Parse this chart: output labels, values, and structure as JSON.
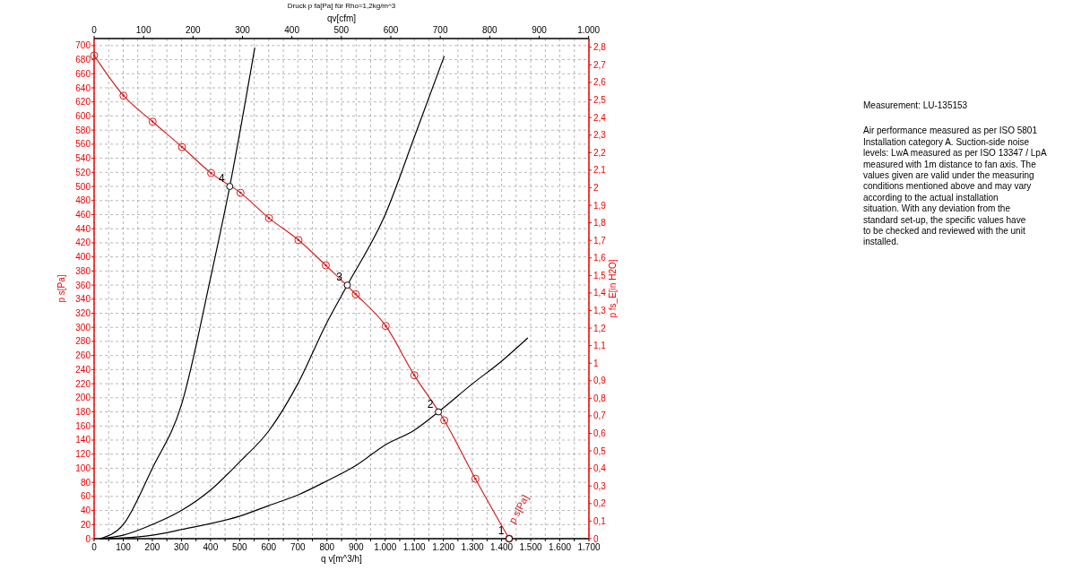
{
  "chart_data": {
    "type": "line",
    "title": "Druck p fa[Pa] für Rho=1,2kg/m^3",
    "xlabel": "q v[m^3/h]",
    "x2label": "qv[cfm]",
    "ylabel": "p s[Pa]",
    "y2label": "p fs_E[in H2O]",
    "xlim": [
      0,
      1700
    ],
    "xticks": [
      0,
      {
        "value": 50,
        "label": null
      },
      {
        "value": 100,
        "label": "100"
      },
      {
        "value": 150,
        "label": null
      },
      {
        "value": 200,
        "label": "200"
      },
      {
        "value": 250,
        "label": null
      },
      {
        "value": 300,
        "label": "300"
      },
      {
        "value": 350,
        "label": null
      },
      {
        "value": 400,
        "label": "400"
      },
      {
        "value": 450,
        "label": null
      },
      {
        "value": 500,
        "label": "500"
      },
      {
        "value": 550,
        "label": null
      },
      {
        "value": 600,
        "label": "600"
      },
      {
        "value": 650,
        "label": null
      },
      {
        "value": 700,
        "label": "700"
      },
      {
        "value": 750,
        "label": null
      },
      {
        "value": 800,
        "label": "800"
      },
      {
        "value": 850,
        "label": null
      },
      {
        "value": 900,
        "label": "900"
      },
      {
        "value": 950,
        "label": null
      },
      {
        "value": 1000,
        "label": "1.000"
      },
      {
        "value": 1050,
        "label": null
      },
      {
        "value": 1100,
        "label": "1.100"
      },
      {
        "value": 1150,
        "label": null
      },
      {
        "value": 1200,
        "label": "1.200"
      },
      {
        "value": 1250,
        "label": null
      },
      {
        "value": 1300,
        "label": "1.300"
      },
      {
        "value": 1350,
        "label": null
      },
      {
        "value": 1400,
        "label": "1.400"
      },
      {
        "value": 1450,
        "label": null
      },
      {
        "value": 1500,
        "label": "1.500"
      },
      {
        "value": 1550,
        "label": null
      },
      {
        "value": 1600,
        "label": "1.600"
      },
      {
        "value": 1650,
        "label": null
      },
      {
        "value": 1700,
        "label": "1.700"
      }
    ],
    "x2lim": [
      0,
      1000.6
    ],
    "x2ticks": [
      0,
      100,
      200,
      300,
      400,
      500,
      600,
      700,
      800,
      900,
      {
        "value": 1000,
        "label": "1.000"
      }
    ],
    "ylim": [
      0,
      710
    ],
    "yticks": [
      0,
      20,
      40,
      60,
      80,
      100,
      120,
      140,
      160,
      180,
      200,
      220,
      240,
      260,
      280,
      300,
      320,
      340,
      360,
      380,
      400,
      420,
      440,
      460,
      480,
      500,
      520,
      540,
      560,
      580,
      600,
      620,
      640,
      660,
      680,
      700
    ],
    "y2lim": [
      0,
      2.85
    ],
    "y2ticks": [
      0,
      {
        "value": 0.1,
        "label": "0,1"
      },
      {
        "value": 0.2,
        "label": "0,2"
      },
      {
        "value": 0.3,
        "label": "0,3"
      },
      {
        "value": 0.4,
        "label": "0,4"
      },
      {
        "value": 0.5,
        "label": "0,5"
      },
      {
        "value": 0.6,
        "label": "0,6"
      },
      {
        "value": 0.7,
        "label": "0,7"
      },
      {
        "value": 0.8,
        "label": "0,8"
      },
      {
        "value": 0.9,
        "label": "0,9"
      },
      1,
      {
        "value": 1.1,
        "label": "1,1"
      },
      {
        "value": 1.2,
        "label": "1,2"
      },
      {
        "value": 1.3,
        "label": "1,3"
      },
      {
        "value": 1.4,
        "label": "1,4"
      },
      {
        "value": 1.5,
        "label": "1,5"
      },
      {
        "value": 1.6,
        "label": "1,6"
      },
      {
        "value": 1.7,
        "label": "1,7"
      },
      {
        "value": 1.8,
        "label": "1,8"
      },
      {
        "value": 1.9,
        "label": "1,9"
      },
      2,
      {
        "value": 2.1,
        "label": "2,1"
      },
      {
        "value": 2.2,
        "label": "2,2"
      },
      {
        "value": 2.3,
        "label": "2,3"
      },
      {
        "value": 2.4,
        "label": "2,4"
      },
      {
        "value": 2.5,
        "label": "2,5"
      },
      {
        "value": 2.6,
        "label": "2,6"
      },
      {
        "value": 2.7,
        "label": "2,7"
      },
      {
        "value": 2.8,
        "label": "2,8"
      }
    ],
    "grid": true,
    "series": [
      {
        "name": "p s[Pa]",
        "color": "#d42020",
        "marker": "circle",
        "x": [
          0,
          101,
          201,
          302,
          402,
          503,
          601,
          702,
          796,
          899,
          1002,
          1100,
          1203,
          1310,
          1426
        ],
        "values": [
          686,
          629,
          592,
          556,
          519,
          491,
          455,
          424,
          388,
          347,
          302,
          232,
          168,
          85,
          0
        ]
      },
      {
        "color": "#000000",
        "marker": "none",
        "x": [
          20,
          100,
          200,
          300,
          400,
          466,
          552
        ],
        "values": [
          0,
          20,
          100,
          190,
          370,
          500,
          697
        ]
      },
      {
        "color": "#000000",
        "marker": "none",
        "x": [
          20,
          100,
          200,
          300,
          400,
          500,
          600,
          700,
          800,
          870,
          1000,
          1100,
          1203
        ],
        "values": [
          0,
          5,
          20,
          40,
          69,
          109,
          153,
          220,
          307,
          360,
          460,
          570,
          685
        ]
      },
      {
        "color": "#000000",
        "marker": "none",
        "x": [
          20,
          100,
          200,
          300,
          500,
          600,
          700,
          800,
          900,
          1000,
          1100,
          1183,
          1300,
          1400,
          1490
        ],
        "values": [
          0,
          1,
          5,
          13,
          32,
          47,
          62,
          82,
          104,
          133,
          154,
          180,
          220,
          252,
          285
        ]
      },
      {
        "type": "scatter",
        "color": "#000000",
        "marker": "circle",
        "x": [
          1426,
          1183,
          870,
          466
        ],
        "values": [
          0,
          180,
          360,
          500
        ]
      }
    ],
    "annotations": [
      {
        "text": "1",
        "x": 1426,
        "y": 0
      },
      {
        "text": "2",
        "x": 1183,
        "y": 180
      },
      {
        "text": "3",
        "x": 870,
        "y": 360
      },
      {
        "text": "4",
        "x": 466,
        "y": 500
      },
      "Measurement: LU-135153",
      "Air performance measured as per ISO 5801 Installation category A. Suction-side noise levels: LwA measured as per ISO 13347 / LpA measured with 1m distance to fan axis. The values given are valid under the measuring conditions mentioned above and may vary according to the actual installation situation. With any deviation from the standard set-up, the specific values have to be checked and reviewed with the unit installed."
    ]
  }
}
